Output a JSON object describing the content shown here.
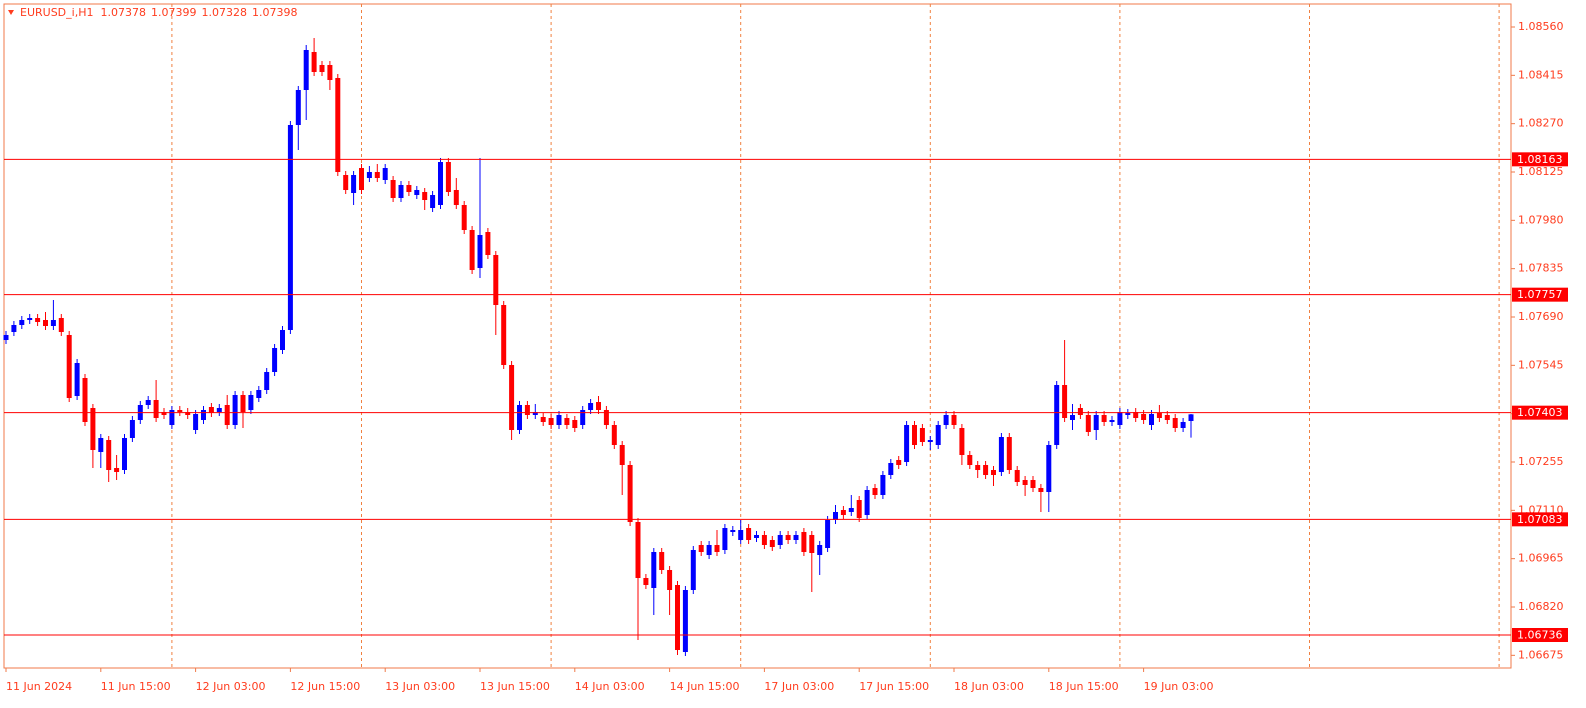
{
  "chart_data": {
    "type": "candlestick",
    "title": "EURUSD_i,H1",
    "up_color": "#0000ff",
    "down_color": "#ff0000",
    "level_color": "#ff0000",
    "categories": [
      "11 Jun 2024",
      null,
      null,
      null,
      null,
      null,
      null,
      null,
      null,
      null,
      null,
      null,
      "11 Jun 15:00",
      null,
      null,
      null,
      null,
      null,
      null,
      null,
      null,
      null,
      null,
      null,
      "12 Jun 03:00",
      null,
      null,
      null,
      null,
      null,
      null,
      null,
      null,
      null,
      null,
      null,
      "12 Jun 15:00",
      null,
      null,
      null,
      null,
      null,
      null,
      null,
      null,
      null,
      null,
      null,
      "13 Jun 03:00",
      null,
      null,
      null,
      null,
      null,
      null,
      null,
      null,
      null,
      null,
      null,
      "13 Jun 15:00",
      null,
      null,
      null,
      null,
      null,
      null,
      null,
      null,
      null,
      null,
      null,
      "14 Jun 03:00",
      null,
      null,
      null,
      null,
      null,
      null,
      null,
      null,
      null,
      null,
      null,
      "14 Jun 15:00",
      null,
      null,
      null,
      null,
      null,
      null,
      null,
      null,
      null,
      null,
      null,
      "17 Jun 03:00",
      null,
      null,
      null,
      null,
      null,
      null,
      null,
      null,
      null,
      null,
      null,
      "17 Jun 15:00",
      null,
      null,
      null,
      null,
      null,
      null,
      null,
      null,
      null,
      null,
      null,
      "18 Jun 03:00",
      null,
      null,
      null,
      null,
      null,
      null,
      null,
      null,
      null,
      null,
      null,
      "18 Jun 15:00",
      null,
      null,
      null,
      null,
      null,
      null,
      null,
      null,
      null,
      null,
      null,
      "19 Jun 03:00",
      null,
      null,
      null,
      null,
      null,
      null
    ],
    "open": [
      1.07621,
      1.07645,
      1.07666,
      1.07681,
      1.07687,
      1.07681,
      1.07663,
      1.07687,
      1.07636,
      1.07453,
      1.07507,
      1.07417,
      1.07285,
      1.07321,
      1.07237,
      1.07231,
      1.07327,
      1.07381,
      1.07426,
      1.07441,
      1.07405,
      1.07366,
      1.07411,
      1.07405,
      1.07351,
      1.07381,
      1.0742,
      1.07405,
      1.07426,
      1.07366,
      1.07456,
      1.07411,
      1.07447,
      1.07471,
      1.07525,
      1.07591,
      1.07651,
      1.08266,
      1.08371,
      1.08485,
      1.08446,
      1.08446,
      1.08407,
      1.08116,
      1.08062,
      1.08137,
      1.08107,
      1.08125,
      1.08101,
      1.08101,
      1.08047,
      1.08086,
      1.08056,
      1.08065,
      1.08017,
      1.08026,
      1.08155,
      1.08071,
      1.08026,
      1.07951,
      1.07837,
      1.07945,
      1.07876,
      1.07726,
      1.07546,
      1.07351,
      1.07426,
      1.07396,
      1.0739,
      1.07387,
      1.07366,
      1.07387,
      1.07381,
      1.07366,
      1.07411,
      1.07435,
      1.07411,
      1.07366,
      1.07306,
      1.07246,
      1.07075,
      1.06907,
      1.06877,
      1.06985,
      1.06931,
      1.06886,
      1.06685,
      1.06871,
      1.07006,
      1.06976,
      1.07006,
      1.06991,
      1.07045,
      1.07021,
      1.07057,
      1.07027,
      1.07036,
      1.07021,
      1.07006,
      1.07036,
      1.07021,
      1.07045,
      1.07036,
      1.06976,
      1.06997,
      1.07081,
      1.07111,
      1.07105,
      1.07141,
      1.07096,
      1.07177,
      1.07156,
      1.07216,
      1.07261,
      1.07255,
      1.07366,
      1.07357,
      1.07315,
      1.07306,
      1.07366,
      1.07396,
      1.07357,
      1.07276,
      1.07246,
      1.07246,
      1.07231,
      1.07225,
      1.0733,
      1.07231,
      1.07201,
      1.07201,
      1.07177,
      1.07165,
      1.07306,
      1.07486,
      1.07381,
      1.07417,
      1.07396,
      1.07351,
      1.07396,
      1.07375,
      1.07366,
      1.07396,
      1.07405,
      1.07399,
      1.07366,
      1.07402,
      1.07396,
      1.07387,
      1.07357,
      1.07378
    ],
    "high": [
      1.07648,
      1.07678,
      1.07693,
      1.07699,
      1.07699,
      1.07705,
      1.07741,
      1.07699,
      1.07648,
      1.07564,
      1.07519,
      1.07429,
      1.07339,
      1.07333,
      1.07276,
      1.07339,
      1.07393,
      1.07438,
      1.07453,
      1.07501,
      1.07417,
      1.07423,
      1.07423,
      1.07417,
      1.07411,
      1.07423,
      1.07432,
      1.07429,
      1.07456,
      1.07468,
      1.07468,
      1.07468,
      1.07483,
      1.07537,
      1.07609,
      1.07663,
      1.08278,
      1.08383,
      1.08506,
      1.08527,
      1.08458,
      1.08458,
      1.08419,
      1.08128,
      1.08128,
      1.08149,
      1.08143,
      1.08149,
      1.08149,
      1.08113,
      1.08098,
      1.08098,
      1.08083,
      1.08077,
      1.08068,
      1.08167,
      1.08167,
      1.08107,
      1.08038,
      1.07963,
      1.08167,
      1.07957,
      1.07888,
      1.07738,
      1.07558,
      1.07438,
      1.07438,
      1.07429,
      1.07402,
      1.07399,
      1.07408,
      1.07399,
      1.07393,
      1.07423,
      1.07444,
      1.07453,
      1.07423,
      1.07378,
      1.07318,
      1.07258,
      1.07087,
      1.06919,
      1.06997,
      1.06997,
      1.06943,
      1.06898,
      1.06883,
      1.07003,
      1.07018,
      1.07018,
      1.07051,
      1.07069,
      1.07063,
      1.07081,
      1.07069,
      1.07048,
      1.07048,
      1.07033,
      1.07048,
      1.07048,
      1.07048,
      1.07057,
      1.07048,
      1.07018,
      1.07093,
      1.07126,
      1.07123,
      1.07156,
      1.07153,
      1.07183,
      1.07189,
      1.07228,
      1.07264,
      1.07273,
      1.07378,
      1.07378,
      1.07369,
      1.07333,
      1.07378,
      1.07408,
      1.07408,
      1.07369,
      1.07288,
      1.07258,
      1.07258,
      1.07243,
      1.07342,
      1.07342,
      1.07243,
      1.07213,
      1.07213,
      1.07189,
      1.07318,
      1.07498,
      1.07621,
      1.07429,
      1.07429,
      1.07408,
      1.07408,
      1.07408,
      1.07393,
      1.07417,
      1.07414,
      1.07417,
      1.07411,
      1.07411,
      1.07426,
      1.07408,
      1.07399,
      1.07387,
      1.07399
    ],
    "low": [
      1.07609,
      1.07633,
      1.07654,
      1.07669,
      1.07663,
      1.07651,
      1.07651,
      1.07633,
      1.07435,
      1.07441,
      1.07363,
      1.07237,
      1.07237,
      1.07195,
      1.07201,
      1.07219,
      1.07315,
      1.07369,
      1.07414,
      1.07375,
      1.07384,
      1.07354,
      1.07393,
      1.07384,
      1.07339,
      1.07369,
      1.0739,
      1.07393,
      1.07354,
      1.07354,
      1.07357,
      1.07399,
      1.07435,
      1.07459,
      1.07513,
      1.07579,
      1.07639,
      1.08191,
      1.08281,
      1.08413,
      1.08413,
      1.08371,
      1.08113,
      1.08059,
      1.08026,
      1.08059,
      1.08095,
      1.08095,
      1.08089,
      1.08035,
      1.08035,
      1.08053,
      1.08044,
      1.08011,
      1.08005,
      1.08014,
      1.08053,
      1.08014,
      1.07939,
      1.07819,
      1.07807,
      1.07864,
      1.07636,
      1.07534,
      1.07321,
      1.07339,
      1.07384,
      1.07384,
      1.07363,
      1.07354,
      1.07354,
      1.07354,
      1.07345,
      1.07354,
      1.07399,
      1.07399,
      1.07354,
      1.07294,
      1.07156,
      1.07063,
      1.06721,
      1.06874,
      1.06796,
      1.06919,
      1.06796,
      1.06676,
      1.06673,
      1.06859,
      1.06973,
      1.06964,
      1.06973,
      1.06979,
      1.07033,
      1.07009,
      1.07009,
      1.07015,
      1.06994,
      1.06988,
      1.06994,
      1.07009,
      1.07009,
      1.06973,
      1.06865,
      1.06916,
      1.06985,
      1.07069,
      1.07084,
      1.07093,
      1.07075,
      1.07084,
      1.07144,
      1.07144,
      1.07204,
      1.07234,
      1.07243,
      1.07294,
      1.07303,
      1.07291,
      1.07294,
      1.07354,
      1.07354,
      1.07246,
      1.07234,
      1.07207,
      1.07204,
      1.07183,
      1.07213,
      1.07219,
      1.07183,
      1.07153,
      1.07165,
      1.07105,
      1.07105,
      1.07294,
      1.07375,
      1.07351,
      1.07384,
      1.07333,
      1.07321,
      1.07363,
      1.07363,
      1.07354,
      1.07384,
      1.07375,
      1.07369,
      1.07351,
      1.07375,
      1.07369,
      1.07345,
      1.07345,
      1.07328
    ],
    "close": [
      1.07636,
      1.07666,
      1.07681,
      1.07687,
      1.07675,
      1.07663,
      1.07681,
      1.07645,
      1.07447,
      1.07552,
      1.07375,
      1.07291,
      1.07327,
      1.07231,
      1.07225,
      1.07327,
      1.07381,
      1.07426,
      1.07441,
      1.07387,
      1.07396,
      1.07411,
      1.07405,
      1.07396,
      1.07399,
      1.07411,
      1.07402,
      1.07417,
      1.07366,
      1.07456,
      1.07405,
      1.07456,
      1.07471,
      1.07525,
      1.07597,
      1.07651,
      1.08266,
      1.08371,
      1.08491,
      1.08425,
      1.08425,
      1.08401,
      1.08125,
      1.08071,
      1.08116,
      1.08071,
      1.08125,
      1.08107,
      1.08137,
      1.08047,
      1.08086,
      1.08065,
      1.08071,
      1.08041,
      1.08056,
      1.08155,
      1.08065,
      1.08026,
      1.07951,
      1.07831,
      1.07936,
      1.07876,
      1.07726,
      1.07546,
      1.07351,
      1.07426,
      1.07396,
      1.07405,
      1.07375,
      1.07366,
      1.07396,
      1.07366,
      1.07357,
      1.07411,
      1.07432,
      1.07411,
      1.07366,
      1.07306,
      1.07246,
      1.07075,
      1.06907,
      1.06886,
      1.06985,
      1.06931,
      1.06871,
      1.06691,
      1.06871,
      1.06991,
      1.06985,
      1.07006,
      1.06985,
      1.07057,
      1.07051,
      1.07051,
      1.07021,
      1.07036,
      1.07006,
      1.07,
      1.07036,
      1.07021,
      1.07036,
      1.06985,
      1.06982,
      1.07006,
      1.07081,
      1.07105,
      1.07096,
      1.07117,
      1.07087,
      1.07171,
      1.07156,
      1.07216,
      1.07252,
      1.07246,
      1.07366,
      1.07306,
      1.07315,
      1.07321,
      1.07366,
      1.07396,
      1.07366,
      1.07276,
      1.07246,
      1.07231,
      1.07216,
      1.07216,
      1.0733,
      1.07231,
      1.07195,
      1.07186,
      1.07177,
      1.07165,
      1.07306,
      1.07486,
      1.07387,
      1.07396,
      1.07396,
      1.07345,
      1.07396,
      1.07375,
      1.07381,
      1.07405,
      1.07402,
      1.07387,
      1.07381,
      1.07399,
      1.07387,
      1.07381,
      1.07357,
      1.07375,
      1.07398
    ],
    "levels": [
      1.08163,
      1.07757,
      1.07403,
      1.07083,
      1.06736
    ],
    "ylim": [
      1.06637,
      1.08629
    ],
    "yticks": [
      {
        "value": 1.0856,
        "label": "1.08560"
      },
      {
        "value": 1.08415,
        "label": "1.08415"
      },
      {
        "value": 1.0827,
        "label": "1.08270"
      },
      {
        "value": 1.08125,
        "label": "1.08125"
      },
      {
        "value": 1.0798,
        "label": "1.07980"
      },
      {
        "value": 1.07835,
        "label": "1.07835"
      },
      {
        "value": 1.0769,
        "label": "1.07690"
      },
      {
        "value": 1.07545,
        "label": "1.07545"
      },
      {
        "value": 1.074,
        "label": "1.07400"
      },
      {
        "value": 1.07255,
        "label": "1.07255"
      },
      {
        "value": 1.0711,
        "label": "1.07110"
      },
      {
        "value": 1.06965,
        "label": "1.06965"
      },
      {
        "value": 1.0682,
        "label": "1.06820"
      },
      {
        "value": 1.06675,
        "label": "1.06675"
      }
    ]
  }
}
